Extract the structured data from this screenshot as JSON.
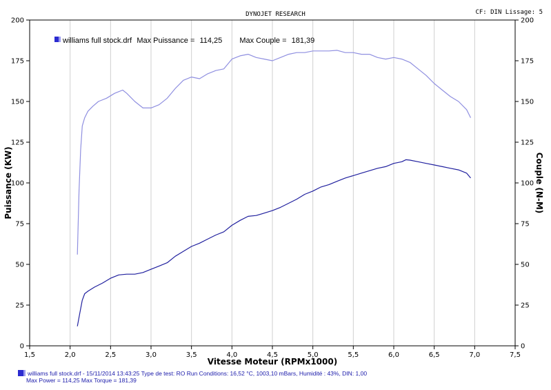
{
  "header": {
    "title": "DYNOJET RESEARCH",
    "cf_info": "CF: DIN  Lissage: 5"
  },
  "legend": {
    "file": "williams full stock.drf",
    "max_puissance_label": "Max Puissance =",
    "max_puissance_value": "114,25",
    "max_couple_label": "Max Couple =",
    "max_couple_value": "181,39"
  },
  "footer": {
    "line1": "williams full stock.drf - 15/11/2014 13:43:25  Type de test: RO  Run Conditions: 16,52 °C, 1003,10 mBars,  Humidité : 43%, DIN: 1,00",
    "line2": "Max Power = 114,25  Max Torque = 181,39"
  },
  "colors": {
    "power": "#1f1f9e",
    "torque": "#8f8fe0",
    "frame": "#000000",
    "grid": "#cfcfcf"
  },
  "chart_data": {
    "type": "line",
    "xlabel": "Vitesse Moteur (RPMx1000)",
    "ylabel_left": "Puissance (KW)",
    "ylabel_right": "Couple (N-M)",
    "xlim": [
      1.5,
      7.5
    ],
    "ylim": [
      0,
      200
    ],
    "xticks": [
      "1,5",
      "2,0",
      "2,5",
      "3,0",
      "3,5",
      "4,0",
      "4,5",
      "5,0",
      "5,5",
      "6,0",
      "6,5",
      "7,0",
      "7,5"
    ],
    "yticks": [
      "0",
      "25",
      "50",
      "75",
      "100",
      "125",
      "150",
      "175",
      "200"
    ],
    "grid": "vertical",
    "series": [
      {
        "name": "Puissance",
        "axis": "left",
        "x": [
          2.09,
          2.12,
          2.15,
          2.18,
          2.22,
          2.3,
          2.4,
          2.5,
          2.6,
          2.7,
          2.8,
          2.9,
          3.0,
          3.1,
          3.2,
          3.3,
          3.4,
          3.5,
          3.6,
          3.7,
          3.8,
          3.9,
          4.0,
          4.1,
          4.2,
          4.3,
          4.4,
          4.5,
          4.6,
          4.7,
          4.8,
          4.9,
          5.0,
          5.1,
          5.2,
          5.3,
          5.4,
          5.5,
          5.6,
          5.7,
          5.8,
          5.9,
          6.0,
          6.1,
          6.15,
          6.2,
          6.3,
          6.4,
          6.5,
          6.6,
          6.7,
          6.8,
          6.9,
          6.95
        ],
        "values": [
          12,
          20,
          28,
          32,
          33.5,
          36,
          38.5,
          41.5,
          43.5,
          44,
          44,
          45,
          47,
          49,
          51,
          55,
          58,
          61,
          63,
          65.5,
          68,
          70,
          74,
          77,
          79.5,
          80,
          81.5,
          83,
          85,
          87.5,
          90,
          93,
          95,
          97.5,
          99,
          101,
          103,
          104.5,
          106,
          107.5,
          109,
          110,
          112,
          113,
          114.25,
          114,
          113,
          112,
          111,
          110,
          109,
          108,
          106,
          103
        ]
      },
      {
        "name": "Couple",
        "axis": "right",
        "x": [
          2.09,
          2.11,
          2.13,
          2.15,
          2.18,
          2.22,
          2.28,
          2.35,
          2.45,
          2.55,
          2.6,
          2.65,
          2.7,
          2.8,
          2.9,
          3.0,
          3.1,
          3.2,
          3.3,
          3.4,
          3.5,
          3.6,
          3.7,
          3.8,
          3.9,
          4.0,
          4.1,
          4.2,
          4.3,
          4.4,
          4.5,
          4.6,
          4.7,
          4.8,
          4.9,
          5.0,
          5.1,
          5.2,
          5.3,
          5.4,
          5.5,
          5.6,
          5.7,
          5.8,
          5.9,
          6.0,
          6.1,
          6.2,
          6.3,
          6.4,
          6.5,
          6.6,
          6.7,
          6.8,
          6.9,
          6.95
        ],
        "values": [
          56,
          95,
          120,
          135,
          140,
          144,
          147,
          150,
          152,
          155,
          156,
          157,
          155,
          150,
          146,
          146,
          148,
          152,
          158,
          163,
          165,
          164,
          167,
          169,
          170,
          176,
          178,
          179,
          177,
          176,
          175,
          177,
          179,
          180,
          180,
          181,
          181,
          181,
          181.39,
          180,
          180,
          179,
          179,
          177,
          176,
          177,
          176,
          174,
          170,
          166,
          161,
          157,
          153,
          150,
          145,
          140
        ]
      }
    ]
  }
}
